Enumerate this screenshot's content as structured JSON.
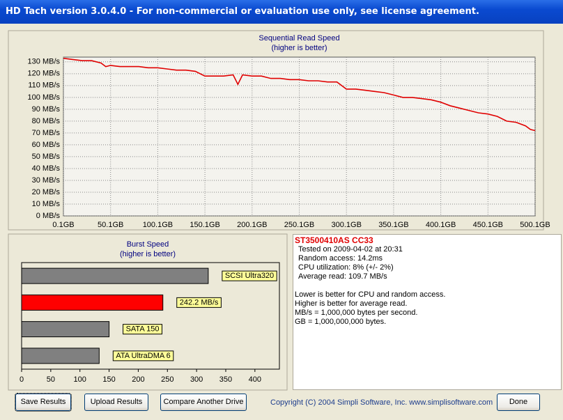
{
  "window": {
    "title": "HD Tach version 3.0.4.0  - For non-commercial or evaluation use only, see license agreement."
  },
  "chart_data": [
    {
      "type": "line",
      "title": "Sequential Read Speed",
      "subtitle": "(higher is better)",
      "color": "#e00000",
      "grid": true,
      "x": [
        0.1,
        10,
        20,
        30,
        40,
        45,
        50,
        60,
        70,
        80,
        90,
        100,
        110,
        120,
        130,
        140,
        150,
        160,
        170,
        180,
        185,
        190,
        200,
        210,
        220,
        230,
        240,
        250,
        260,
        270,
        280,
        290,
        300,
        310,
        320,
        330,
        340,
        350,
        360,
        370,
        380,
        390,
        400,
        410,
        420,
        430,
        440,
        450,
        460,
        470,
        480,
        490,
        495,
        500.1
      ],
      "values": [
        133,
        132,
        131,
        131,
        129,
        126,
        127,
        126,
        126,
        126,
        125,
        125,
        124,
        123,
        123,
        122,
        118,
        118,
        118,
        119,
        111,
        119,
        118,
        118,
        116,
        116,
        115,
        115,
        114,
        114,
        113,
        113,
        107,
        107,
        106,
        105,
        104,
        102,
        100,
        100,
        99,
        98,
        96,
        93,
        91,
        89,
        87,
        86,
        84,
        80,
        79,
        76,
        73,
        72
      ],
      "xlim": [
        0.1,
        500.1
      ],
      "ylim": [
        0,
        134
      ],
      "xticks": [
        {
          "value": 0.1,
          "label": "0.1GB"
        },
        {
          "value": 50.1,
          "label": "50.1GB"
        },
        {
          "value": 100.1,
          "label": "100.1GB"
        },
        {
          "value": 150.1,
          "label": "150.1GB"
        },
        {
          "value": 200.1,
          "label": "200.1GB"
        },
        {
          "value": 250.1,
          "label": "250.1GB"
        },
        {
          "value": 300.1,
          "label": "300.1GB"
        },
        {
          "value": 350.1,
          "label": "350.1GB"
        },
        {
          "value": 400.1,
          "label": "400.1GB"
        },
        {
          "value": 450.1,
          "label": "450.1GB"
        },
        {
          "value": 500.1,
          "label": "500.1GB"
        }
      ],
      "yticks": [
        {
          "value": 0,
          "label": "0 MB/s"
        },
        {
          "value": 10,
          "label": "10 MB/s"
        },
        {
          "value": 20,
          "label": "20 MB/s"
        },
        {
          "value": 30,
          "label": "30 MB/s"
        },
        {
          "value": 40,
          "label": "40 MB/s"
        },
        {
          "value": 50,
          "label": "50 MB/s"
        },
        {
          "value": 60,
          "label": "60 MB/s"
        },
        {
          "value": 70,
          "label": "70 MB/s"
        },
        {
          "value": 80,
          "label": "80 MB/s"
        },
        {
          "value": 90,
          "label": "90 MB/s"
        },
        {
          "value": 100,
          "label": "100 MB/s"
        },
        {
          "value": 110,
          "label": "110 MB/s"
        },
        {
          "value": 120,
          "label": "120 MB/s"
        },
        {
          "value": 130,
          "label": "130 MB/s"
        }
      ]
    },
    {
      "type": "hbar",
      "title": "Burst Speed",
      "subtitle": "(higher is better)",
      "categories": [
        "SCSI Ultra320",
        null,
        "SATA 150",
        "ATA UltraDMA 6"
      ],
      "values": [
        320,
        242.2,
        150,
        133
      ],
      "value_labels": [
        null,
        "242.2 MB/s",
        null,
        null
      ],
      "colors": [
        "#808080",
        "#ff0000",
        "#808080",
        "#808080"
      ],
      "xlim": [
        0,
        442
      ],
      "xticks": [
        0,
        50,
        100,
        150,
        200,
        250,
        300,
        350,
        400
      ]
    }
  ],
  "info": {
    "heading": "ST3500410AS CC33",
    "lines": [
      "Tested on 2009-04-02 at 20:31",
      "Random access: 14.2ms",
      "CPU utilization: 8% (+/- 2%)",
      "Average read: 109.7 MB/s"
    ],
    "notes": [
      "Lower is better for CPU and random access.",
      "Higher is better for average read.",
      "MB/s = 1,000,000 bytes per second.",
      "GB = 1,000,000,000 bytes."
    ]
  },
  "buttons": [
    "Save Results",
    "Upload Results",
    "Compare Another Drive",
    "Done"
  ],
  "copyright": "Copyright (C) 2004 Simpli Software, Inc. www.simplisoftware.com"
}
